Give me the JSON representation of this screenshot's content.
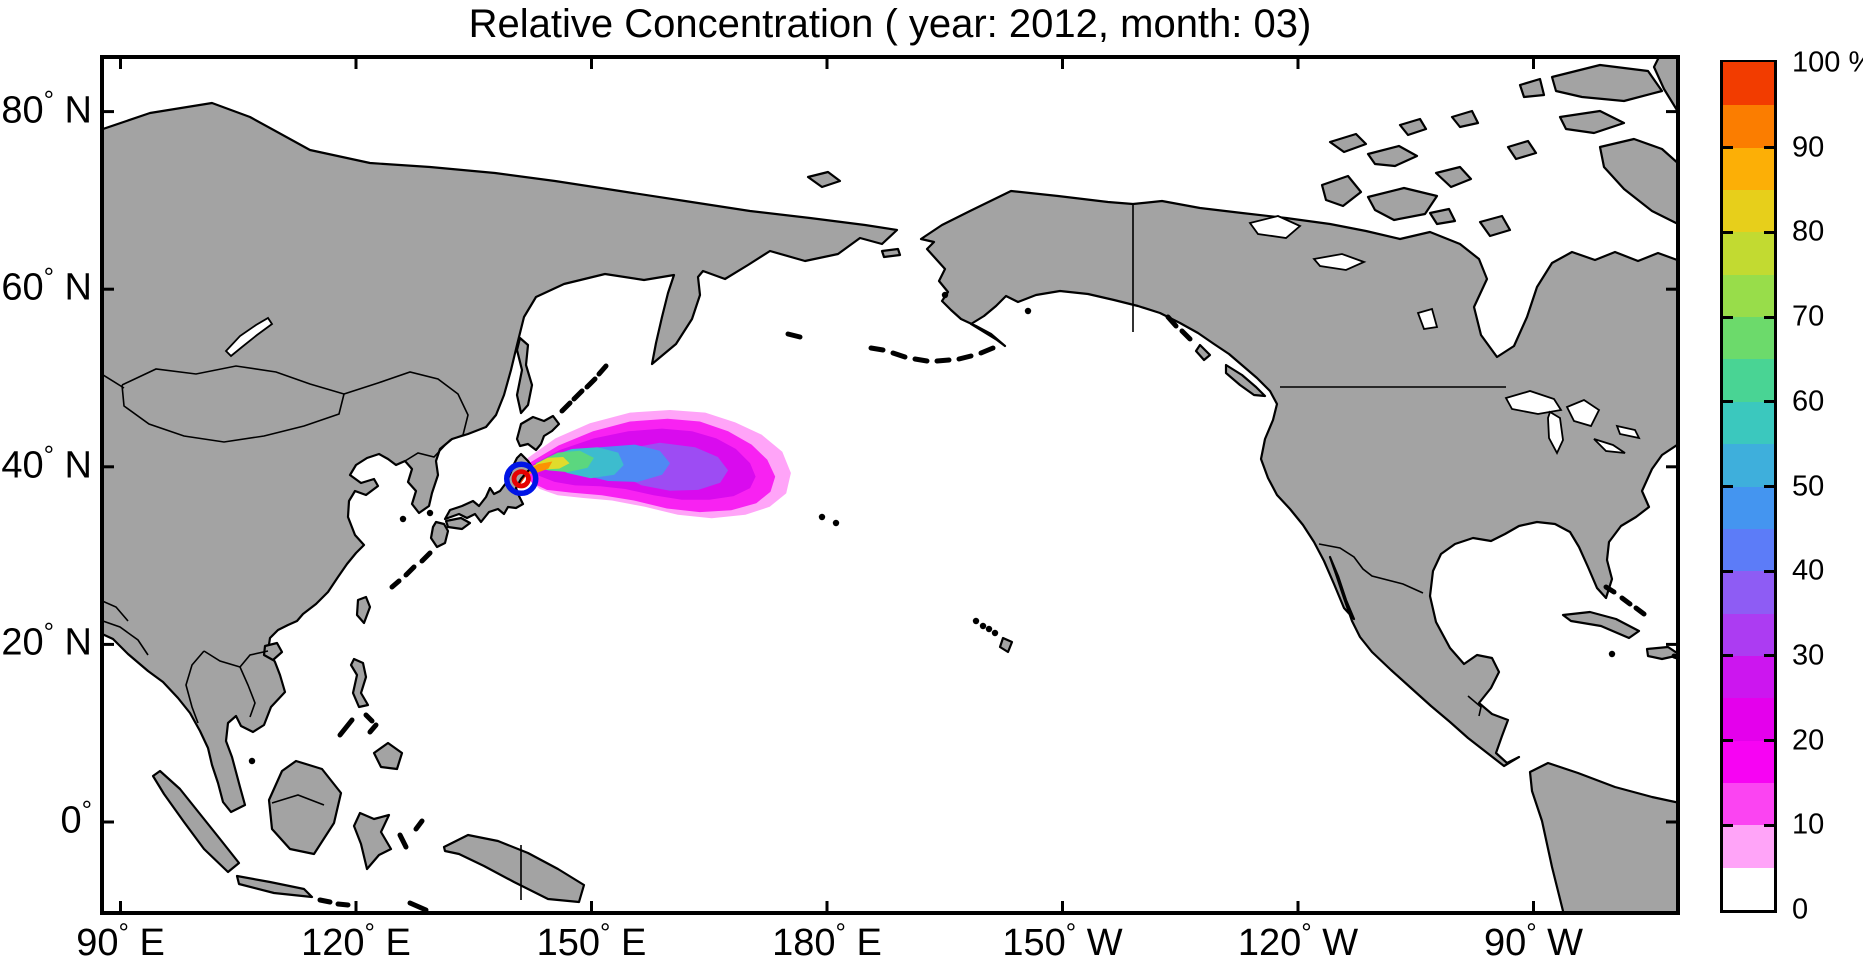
{
  "title": "Relative Concentration ( year: 2012, month: 03)",
  "axes": {
    "x_tick_labels": [
      "90° E",
      "120° E",
      "150° E",
      "180° E",
      "150° W",
      "120° W",
      "90° W"
    ],
    "x_tick_lons_east": [
      90,
      120,
      150,
      180,
      210,
      240,
      270
    ],
    "y_tick_labels": [
      "80° N",
      "60° N",
      "40° N",
      "20° N",
      "0°"
    ],
    "y_tick_lats": [
      80,
      60,
      40,
      20,
      0
    ]
  },
  "colorbar": {
    "tick_labels": [
      "100 %",
      "90",
      "80",
      "70",
      "60",
      "50",
      "40",
      "30",
      "20",
      "10",
      "0"
    ],
    "tick_values": [
      100,
      90,
      80,
      70,
      60,
      50,
      40,
      30,
      20,
      10,
      0
    ],
    "segment_colors_bottom_to_top": [
      "#FFFFFF",
      "#FFA4F8",
      "#FB44F2",
      "#F703F3",
      "#E400EC",
      "#CC16EF",
      "#AC3CF2",
      "#8E5CF4",
      "#5C7CF8",
      "#4495F0",
      "#3EAFDC",
      "#3BC8BE",
      "#49D494",
      "#6CDA6B",
      "#98DD4A",
      "#C2DA31",
      "#E7CF1B",
      "#FCAF06",
      "#FB7D00",
      "#F23C00"
    ]
  },
  "map": {
    "land_color": "#A3A3A3",
    "ocean_color": "#FFFFFF",
    "coastline_color": "#000000",
    "frame_color": "#000000"
  },
  "source_marker": {
    "name": "release-site-marker",
    "lon_east": 141.05,
    "lat_north": 38.65,
    "outer_ring_color": "#0014E6",
    "inner_ring_color": "#E60000"
  },
  "chart_data": {
    "type": "heatmap",
    "title": "Relative Concentration ( year: 2012, month: 03)",
    "year": "2012",
    "month": "03",
    "unit": "%",
    "colorbar_range": [
      0,
      100
    ],
    "colorbar_step_pct": 5,
    "lon_range_deg_east": [
      87.4,
      288.8
    ],
    "lat_range_deg_north": [
      -10.5,
      86.4
    ],
    "grid": false,
    "legend_position": "right-colorbar",
    "source_location": {
      "lon_east": 141.05,
      "lat_north": 38.65
    },
    "plume_bands_pct": [
      {
        "range": "5-10",
        "color": "#FFA4F8",
        "polygon_lonlat": [
          [
            141.9,
            41.0
          ],
          [
            145.4,
            43.2
          ],
          [
            149.8,
            44.9
          ],
          [
            154.9,
            46.1
          ],
          [
            160.0,
            46.4
          ],
          [
            164.5,
            46.1
          ],
          [
            168.3,
            45.0
          ],
          [
            171.7,
            43.6
          ],
          [
            174.3,
            41.7
          ],
          [
            175.4,
            39.3
          ],
          [
            174.8,
            37.0
          ],
          [
            172.7,
            35.5
          ],
          [
            169.6,
            34.6
          ],
          [
            165.3,
            34.2
          ],
          [
            161.0,
            34.6
          ],
          [
            156.8,
            35.5
          ],
          [
            152.6,
            36.2
          ],
          [
            148.8,
            36.5
          ],
          [
            145.7,
            36.8
          ],
          [
            143.4,
            37.5
          ],
          [
            142.0,
            38.6
          ],
          [
            141.4,
            39.9
          ]
        ]
      },
      {
        "range": "10-20",
        "color": "#F822F2",
        "polygon_lonlat": [
          [
            142.2,
            40.5
          ],
          [
            145.8,
            42.4
          ],
          [
            150.2,
            44.0
          ],
          [
            154.9,
            45.1
          ],
          [
            159.7,
            45.4
          ],
          [
            163.8,
            45.1
          ],
          [
            167.4,
            44.0
          ],
          [
            170.4,
            42.5
          ],
          [
            172.4,
            40.8
          ],
          [
            173.4,
            38.9
          ],
          [
            172.8,
            37.2
          ],
          [
            171.0,
            35.9
          ],
          [
            167.8,
            35.1
          ],
          [
            163.8,
            34.9
          ],
          [
            159.6,
            35.3
          ],
          [
            155.4,
            36.2
          ],
          [
            151.3,
            36.8
          ],
          [
            147.4,
            37.1
          ],
          [
            144.3,
            37.4
          ],
          [
            142.4,
            38.2
          ],
          [
            141.6,
            39.3
          ]
        ]
      },
      {
        "range": "20-30",
        "color": "#D90BEE",
        "polygon_lonlat": [
          [
            142.4,
            40.2
          ],
          [
            146.0,
            41.9
          ],
          [
            150.3,
            43.2
          ],
          [
            154.7,
            44.0
          ],
          [
            159.0,
            44.3
          ],
          [
            162.8,
            44.0
          ],
          [
            165.9,
            43.2
          ],
          [
            168.4,
            42.0
          ],
          [
            170.2,
            40.4
          ],
          [
            170.9,
            38.9
          ],
          [
            170.2,
            37.6
          ],
          [
            168.1,
            36.7
          ],
          [
            165.0,
            36.3
          ],
          [
            161.5,
            36.3
          ],
          [
            157.9,
            36.8
          ],
          [
            154.3,
            37.5
          ],
          [
            151.1,
            37.8
          ],
          [
            147.9,
            37.9
          ],
          [
            145.3,
            38.3
          ],
          [
            143.3,
            39.0
          ]
        ]
      },
      {
        "range": "30-40",
        "color": "#9D4CF3",
        "polygon_lonlat": [
          [
            153.6,
            41.9
          ],
          [
            158.7,
            42.7
          ],
          [
            163.2,
            42.2
          ],
          [
            166.1,
            41.1
          ],
          [
            167.4,
            39.6
          ],
          [
            166.4,
            38.2
          ],
          [
            163.6,
            37.4
          ],
          [
            160.0,
            37.3
          ],
          [
            156.4,
            37.9
          ],
          [
            153.6,
            39.1
          ],
          [
            152.6,
            40.5
          ]
        ]
      },
      {
        "range": "40-50",
        "color": "#4F89F4",
        "polygon_lonlat": [
          [
            147.0,
            41.3
          ],
          [
            151.1,
            42.2
          ],
          [
            155.5,
            42.5
          ],
          [
            158.7,
            41.8
          ],
          [
            160.0,
            40.4
          ],
          [
            159.0,
            39.1
          ],
          [
            155.9,
            38.3
          ],
          [
            152.1,
            38.4
          ],
          [
            148.8,
            39.1
          ],
          [
            147.0,
            40.2
          ]
        ]
      },
      {
        "range": "50-60",
        "color": "#3DBCCE",
        "polygon_lonlat": [
          [
            144.5,
            41.1
          ],
          [
            147.5,
            42.0
          ],
          [
            150.8,
            42.2
          ],
          [
            153.4,
            41.6
          ],
          [
            154.1,
            40.2
          ],
          [
            152.9,
            39.1
          ],
          [
            149.9,
            38.7
          ],
          [
            146.9,
            39.3
          ],
          [
            145.0,
            40.2
          ]
        ]
      },
      {
        "range": "60-70",
        "color": "#5BD77F",
        "polygon_lonlat": [
          [
            142.9,
            40.4
          ],
          [
            145.7,
            41.6
          ],
          [
            148.5,
            41.8
          ],
          [
            150.3,
            41.0
          ],
          [
            149.5,
            39.9
          ],
          [
            147.0,
            39.4
          ],
          [
            144.5,
            39.6
          ],
          [
            143.2,
            39.9
          ]
        ]
      },
      {
        "range": "70-80",
        "color": "#E0DC2C",
        "polygon_lonlat": [
          [
            142.1,
            39.9
          ],
          [
            144.4,
            41.0
          ],
          [
            146.4,
            41.1
          ],
          [
            147.2,
            40.4
          ],
          [
            145.9,
            39.8
          ],
          [
            143.9,
            39.7
          ],
          [
            142.5,
            39.6
          ]
        ]
      },
      {
        "range": "80-90",
        "color": "#FC9303",
        "polygon_lonlat": [
          [
            141.4,
            39.4
          ],
          [
            143.2,
            40.3
          ],
          [
            145.0,
            40.6
          ],
          [
            144.5,
            39.8
          ],
          [
            143.0,
            39.3
          ],
          [
            141.9,
            39.2
          ]
        ]
      },
      {
        "range": "90-100",
        "color": "#F23C00",
        "polygon_lonlat": [
          [
            140.9,
            38.0
          ],
          [
            141.6,
            38.9
          ],
          [
            142.4,
            39.8
          ],
          [
            141.9,
            40.2
          ],
          [
            141.2,
            39.2
          ],
          [
            140.7,
            38.4
          ]
        ]
      }
    ]
  }
}
